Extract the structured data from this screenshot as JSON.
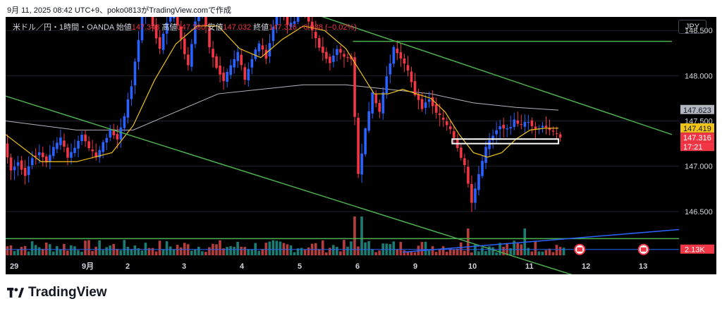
{
  "caption": "9月 11, 2025 08:42 UTC+9、poko0813がTradingView.comで作成",
  "legend": {
    "symbol": "米ドル／円・1時間・OANDA",
    "open_label": "始値",
    "open": "147.348",
    "high_label": "高値",
    "high": "147.380",
    "low_label": "安値",
    "low": "147.032",
    "close_label": "終値",
    "close": "147.316",
    "change": "−0.038 (−0.02%)"
  },
  "currency": "JPY",
  "brand": "TradingView",
  "colors": {
    "background": "#000000",
    "up": "#2962ff",
    "down": "#f23645",
    "ma_fast": "#f0c419",
    "ma_slow": "#b2b5be",
    "trendline": "#4caf50",
    "support_line": "#2962ff",
    "volume_up": "#26a69a",
    "volume_down": "#ef5350"
  },
  "chart_data": {
    "type": "candlestick",
    "symbol": "USD/JPY",
    "interval": "1h",
    "y_ticks": [
      "146.500",
      "147.000",
      "147.500",
      "148.000",
      "148.500"
    ],
    "y_range": [
      146.0,
      148.65
    ],
    "x_ticks": [
      "29",
      "9月",
      "2",
      "3",
      "4",
      "5",
      "6",
      "9",
      "10",
      "11",
      "12",
      "13"
    ],
    "price_labels": [
      {
        "value": "147.623",
        "role": "slow_ma"
      },
      {
        "value": "147.419",
        "role": "fast_ma"
      },
      {
        "value": "147.316",
        "role": "last"
      },
      {
        "value": "17:21",
        "role": "countdown"
      }
    ],
    "volume_label": "2.13K",
    "price_path": [
      [
        0,
        147.25
      ],
      [
        2,
        146.95
      ],
      [
        4,
        147.05
      ],
      [
        6,
        146.9
      ],
      [
        8,
        147.1
      ],
      [
        10,
        147.15
      ],
      [
        12,
        147.05
      ],
      [
        14,
        147.2
      ],
      [
        16,
        147.3
      ],
      [
        18,
        147.1
      ],
      [
        20,
        147.2
      ],
      [
        22,
        147.35
      ],
      [
        24,
        147.2
      ],
      [
        26,
        147.1
      ],
      [
        28,
        147.25
      ],
      [
        30,
        147.4
      ],
      [
        32,
        147.3
      ],
      [
        34,
        147.55
      ],
      [
        36,
        147.9
      ],
      [
        38,
        148.4
      ],
      [
        40,
        148.9
      ],
      [
        42,
        148.55
      ],
      [
        44,
        148.3
      ],
      [
        46,
        148.6
      ],
      [
        48,
        148.7
      ],
      [
        50,
        148.4
      ],
      [
        52,
        148.1
      ],
      [
        54,
        148.6
      ],
      [
        56,
        148.8
      ],
      [
        58,
        148.3
      ],
      [
        60,
        148.1
      ],
      [
        62,
        147.95
      ],
      [
        64,
        148.1
      ],
      [
        66,
        148.25
      ],
      [
        68,
        147.95
      ],
      [
        70,
        148.2
      ],
      [
        72,
        148.35
      ],
      [
        74,
        148.2
      ],
      [
        76,
        148.55
      ],
      [
        78,
        148.8
      ],
      [
        80,
        148.55
      ],
      [
        82,
        148.6
      ],
      [
        84,
        148.8
      ],
      [
        86,
        148.6
      ],
      [
        88,
        148.4
      ],
      [
        90,
        148.25
      ],
      [
        92,
        148.15
      ],
      [
        94,
        148.3
      ],
      [
        96,
        148.2
      ],
      [
        98,
        148.2
      ],
      [
        100,
        146.9
      ],
      [
        102,
        147.4
      ],
      [
        104,
        147.8
      ],
      [
        106,
        147.6
      ],
      [
        108,
        148.0
      ],
      [
        110,
        148.3
      ],
      [
        112,
        148.2
      ],
      [
        114,
        148.05
      ],
      [
        116,
        147.8
      ],
      [
        118,
        147.65
      ],
      [
        120,
        147.75
      ],
      [
        122,
        147.6
      ],
      [
        124,
        147.5
      ],
      [
        126,
        147.4
      ],
      [
        128,
        147.2
      ],
      [
        130,
        147.0
      ],
      [
        132,
        146.6
      ],
      [
        134,
        146.9
      ],
      [
        136,
        147.2
      ],
      [
        138,
        147.35
      ],
      [
        140,
        147.45
      ],
      [
        142,
        147.4
      ],
      [
        144,
        147.5
      ],
      [
        146,
        147.45
      ],
      [
        148,
        147.5
      ],
      [
        150,
        147.4
      ],
      [
        152,
        147.45
      ],
      [
        154,
        147.4
      ],
      [
        156,
        147.35
      ],
      [
        157,
        147.32
      ]
    ],
    "ma_fast_path": [
      [
        0,
        147.35
      ],
      [
        10,
        147.05
      ],
      [
        20,
        147.05
      ],
      [
        30,
        147.15
      ],
      [
        36,
        147.45
      ],
      [
        42,
        147.95
      ],
      [
        48,
        148.35
      ],
      [
        54,
        148.55
      ],
      [
        60,
        148.55
      ],
      [
        66,
        148.3
      ],
      [
        72,
        148.2
      ],
      [
        78,
        148.4
      ],
      [
        84,
        148.55
      ],
      [
        90,
        148.5
      ],
      [
        96,
        148.3
      ],
      [
        100,
        148.05
      ],
      [
        104,
        147.8
      ],
      [
        108,
        147.8
      ],
      [
        112,
        147.85
      ],
      [
        116,
        147.8
      ],
      [
        120,
        147.75
      ],
      [
        124,
        147.6
      ],
      [
        128,
        147.35
      ],
      [
        132,
        147.15
      ],
      [
        136,
        147.1
      ],
      [
        140,
        147.15
      ],
      [
        144,
        147.3
      ],
      [
        148,
        147.4
      ],
      [
        152,
        147.42
      ],
      [
        156,
        147.42
      ]
    ],
    "ma_slow_path": [
      [
        0,
        147.5
      ],
      [
        20,
        147.4
      ],
      [
        36,
        147.4
      ],
      [
        48,
        147.6
      ],
      [
        60,
        147.8
      ],
      [
        72,
        147.85
      ],
      [
        84,
        147.9
      ],
      [
        96,
        147.9
      ],
      [
        108,
        147.85
      ],
      [
        120,
        147.8
      ],
      [
        132,
        147.7
      ],
      [
        144,
        147.65
      ],
      [
        156,
        147.62
      ]
    ],
    "trendlines": [
      {
        "from": [
          -2,
          147.8
        ],
        "to": [
          172,
          145.65
        ]
      },
      {
        "from": [
          82,
          148.75
        ],
        "to": [
          188,
          147.35
        ]
      },
      {
        "from": [
          98,
          148.38
        ],
        "to": [
          188,
          148.38
        ]
      }
    ],
    "support_levels": [
      146.2
    ],
    "support_rise": {
      "from": [
        112,
        146.05
      ],
      "to": [
        188,
        146.3
      ]
    },
    "highlight_box": {
      "from": [
        126,
        147.3
      ],
      "to": [
        156,
        147.25
      ]
    }
  }
}
